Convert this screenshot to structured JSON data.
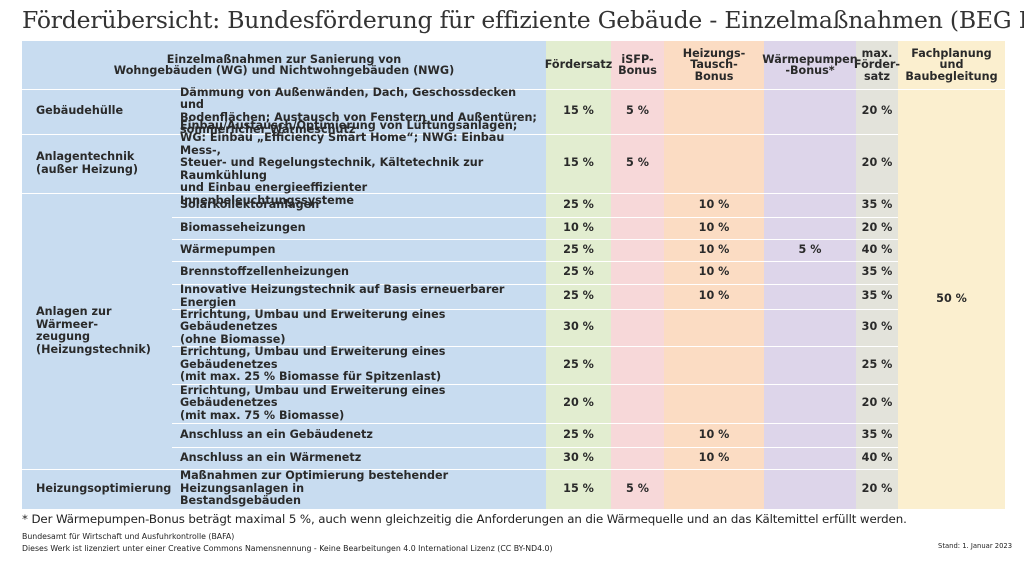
{
  "title": "Förderübersicht: Bundesförderung für effiziente Gebäude - Einzelmaßnahmen (BEG EM)",
  "header": {
    "measures_line1": "Einzelmaßnahmen zur Sanierung von",
    "measures_line2": "Wohngebäuden (WG) und Nichtwohngebäuden (NWG)",
    "foerdersatz": "Fördersatz",
    "isfp_line1": "iSFP-",
    "isfp_line2": "Bonus",
    "tausch_line1": "Heizungs-",
    "tausch_line2": "Tausch-",
    "tausch_line3": "Bonus",
    "wp_line1": "Wärmepumpen",
    "wp_line2": "-Bonus*",
    "max_line1": "max.",
    "max_line2": "Förder-",
    "max_line3": "satz",
    "fach_line1": "Fachplanung",
    "fach_line2": "und",
    "fach_line3": "Baubegleitung"
  },
  "categories": {
    "gebaeudehuelle": "Gebäudehülle",
    "anlagen_line1": "Anlagentechnik",
    "anlagen_line2": "(außer Heizung)",
    "waerme_line1": "Anlagen zur Wärmeer-",
    "waerme_line2": "zeugung",
    "waerme_line3": "(Heizungstechnik)",
    "optimierung": "Heizungsoptimierung"
  },
  "rows": [
    {
      "d1": "Dämmung von Außenwänden, Dach, Geschossdecken und",
      "d2": "Bodenflächen; Austausch von Fenstern und Außentüren;",
      "d3": "sommerlicher Wärmeschutz",
      "d4": "",
      "foerdersatz": "15 %",
      "isfp": "5 %",
      "tausch": "",
      "wp": "",
      "max": "20 %"
    },
    {
      "d1": "Einbau/Austausch/Optimierung von Lüftungsanlagen;",
      "d2": "WG: Einbau „Efficiency Smart Home“; NWG: Einbau Mess-,",
      "d3": "Steuer- und Regelungstechnik, Kältetechnik zur Raumkühlung",
      "d4": "und Einbau energieeffizienter Innenbeleuchtungssysteme",
      "foerdersatz": "15 %",
      "isfp": "5 %",
      "tausch": "",
      "wp": "",
      "max": "20 %"
    },
    {
      "d1": "Solarkollektoranlagen",
      "d2": "",
      "foerdersatz": "25 %",
      "isfp": "",
      "tausch": "10 %",
      "wp": "",
      "max": "35 %"
    },
    {
      "d1": "Biomasseheizungen",
      "d2": "",
      "foerdersatz": "10 %",
      "isfp": "",
      "tausch": "10 %",
      "wp": "",
      "max": "20 %"
    },
    {
      "d1": "Wärmepumpen",
      "d2": "",
      "foerdersatz": "25 %",
      "isfp": "",
      "tausch": "10 %",
      "wp": "5 %",
      "max": "40 %"
    },
    {
      "d1": "Brennstoffzellenheizungen",
      "d2": "",
      "foerdersatz": "25 %",
      "isfp": "",
      "tausch": "10 %",
      "wp": "",
      "max": "35 %"
    },
    {
      "d1": "Innovative Heizungstechnik auf Basis erneuerbarer Energien",
      "d2": "",
      "foerdersatz": "25 %",
      "isfp": "",
      "tausch": "10 %",
      "wp": "",
      "max": "35 %"
    },
    {
      "d1": "Errichtung, Umbau und Erweiterung eines Gebäudenetzes",
      "d2": "(ohne Biomasse)",
      "foerdersatz": "30 %",
      "isfp": "",
      "tausch": "",
      "wp": "",
      "max": "30 %"
    },
    {
      "d1": "Errichtung, Umbau und Erweiterung eines Gebäudenetzes",
      "d2": "(mit max. 25 % Biomasse für Spitzenlast)",
      "foerdersatz": "25 %",
      "isfp": "",
      "tausch": "",
      "wp": "",
      "max": "25 %"
    },
    {
      "d1": "Errichtung, Umbau und Erweiterung eines Gebäudenetzes",
      "d2": "(mit max. 75 % Biomasse)",
      "foerdersatz": "20 %",
      "isfp": "",
      "tausch": "",
      "wp": "",
      "max": "20 %"
    },
    {
      "d1": "Anschluss an ein Gebäudenetz",
      "d2": "",
      "foerdersatz": "25 %",
      "isfp": "",
      "tausch": "10 %",
      "wp": "",
      "max": "35 %"
    },
    {
      "d1": "Anschluss an ein Wärmenetz",
      "d2": "",
      "foerdersatz": "30 %",
      "isfp": "",
      "tausch": "10 %",
      "wp": "",
      "max": "40 %"
    },
    {
      "d1": "Maßnahmen zur Optimierung bestehender Heizungsanlagen in",
      "d2": "Bestandsgebäuden",
      "foerdersatz": "15 %",
      "isfp": "5 %",
      "tausch": "",
      "wp": "",
      "max": "20 %"
    }
  ],
  "fachplanung_value": "50 %",
  "footnote": "* Der Wärmepumpen-Bonus beträgt maximal 5 %, auch wenn gleichzeitig die Anforderungen an die Wärmequelle und an das Kältemittel erfüllt werden.",
  "source_line1": "Bundesamt für Wirtschaft und Ausfuhrkontrolle (BAFA)",
  "source_line2": "Dieses Werk ist lizenziert unter einer Creative Commons Namensnennung - Keine Bearbeitungen 4.0 International Lizenz (CC BY-ND4.0)",
  "stand": "Stand: 1. Januar 2023",
  "colors": {
    "blue": "#c8dcf0",
    "green": "#e2edd0",
    "pink": "#f7d8d9",
    "orange": "#fbdcc3",
    "purple": "#ddd5ea",
    "gray": "#e3e3db",
    "cream": "#fbefcf"
  }
}
